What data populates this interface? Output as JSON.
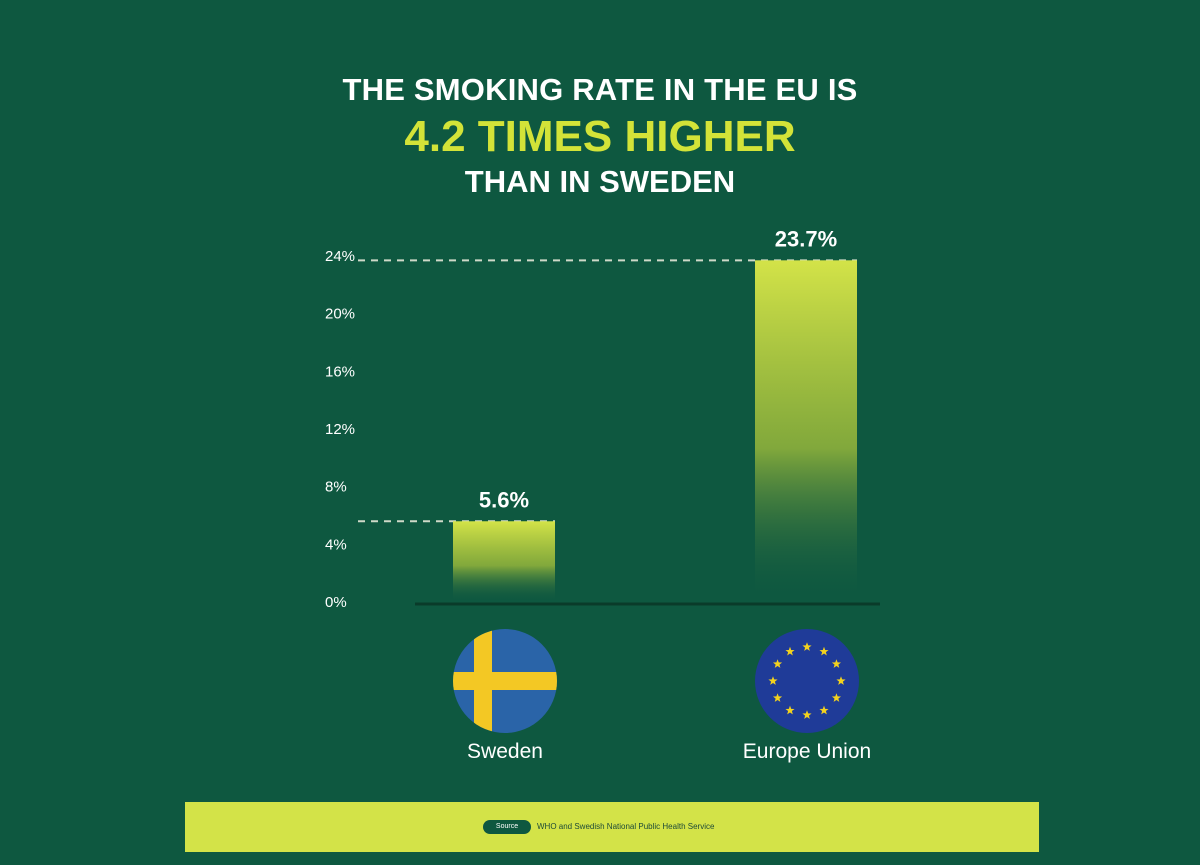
{
  "headline": {
    "line1": "THE SMOKING RATE IN THE EU IS",
    "line2": "4.2 TIMES HIGHER",
    "line3": "THAN IN SWEDEN"
  },
  "colors": {
    "background": "#0e5840",
    "accent": "#d3e338",
    "bar_top": "#d3e348",
    "source_bar": "#d3e348"
  },
  "chart_data": {
    "type": "bar",
    "categories": [
      "Sweden",
      "Europe Union"
    ],
    "values": [
      5.6,
      23.7
    ],
    "value_labels": [
      "5.6%",
      "23.7%"
    ],
    "ylim": [
      0,
      24
    ],
    "yticks": [
      0,
      4,
      8,
      12,
      16,
      20,
      24
    ],
    "ytick_labels": [
      "0%",
      "4%",
      "8%",
      "12%",
      "16%",
      "20%",
      "24%"
    ],
    "grid": false,
    "reference_lines": "dashed line at each bar value"
  },
  "flags": [
    {
      "country": "Sweden",
      "icon": "sweden-flag-icon"
    },
    {
      "country": "Europe Union",
      "icon": "eu-flag-icon"
    }
  ],
  "source": {
    "tag": "Source",
    "text": "WHO and Swedish National Public Health Service"
  }
}
